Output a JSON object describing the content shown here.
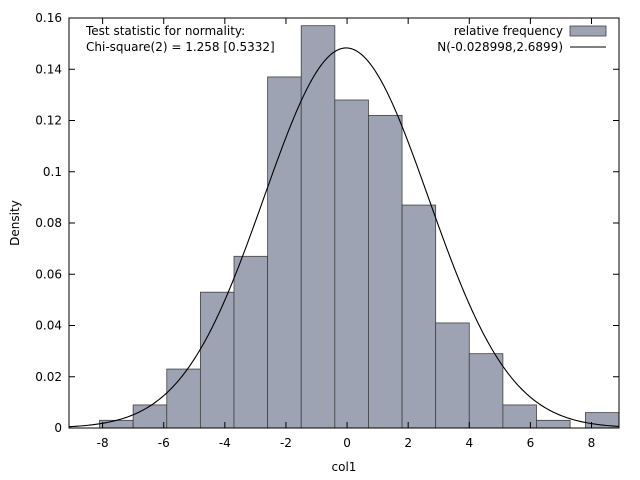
{
  "chart_data": {
    "type": "bar",
    "title": "",
    "xlabel": "col1",
    "ylabel": "Density",
    "xlim": [
      -9.1,
      8.9
    ],
    "ylim": [
      0,
      0.16
    ],
    "xticks": [
      -8,
      -6,
      -4,
      -2,
      0,
      2,
      4,
      6,
      8
    ],
    "yticks": [
      0,
      0.02,
      0.04,
      0.06,
      0.08,
      0.1,
      0.12,
      0.14,
      0.16
    ],
    "ytick_labels": [
      "0",
      "0.02",
      "0.04",
      "0.06",
      "0.08",
      "0.1",
      "0.12",
      "0.14",
      "0.16"
    ],
    "grid": false,
    "legend_position": "top-right",
    "annotation_lines": [
      "Test statistic for normality:",
      "Chi-square(2) = 1.258 [0.5332]"
    ],
    "series": [
      {
        "name": "relative frequency",
        "kind": "histogram",
        "color": "#9ea3b4",
        "edge_color": "#404040",
        "bins": [
          {
            "x0": -8.1,
            "x1": -7.0,
            "value": 0.003
          },
          {
            "x0": -7.0,
            "x1": -5.9,
            "value": 0.009
          },
          {
            "x0": -5.9,
            "x1": -4.8,
            "value": 0.023
          },
          {
            "x0": -4.8,
            "x1": -3.7,
            "value": 0.053
          },
          {
            "x0": -3.7,
            "x1": -2.6,
            "value": 0.067
          },
          {
            "x0": -2.6,
            "x1": -1.5,
            "value": 0.137
          },
          {
            "x0": -1.5,
            "x1": -0.4,
            "value": 0.157
          },
          {
            "x0": -0.4,
            "x1": 0.7,
            "value": 0.128
          },
          {
            "x0": 0.7,
            "x1": 1.8,
            "value": 0.122
          },
          {
            "x0": 1.8,
            "x1": 2.9,
            "value": 0.087
          },
          {
            "x0": 2.9,
            "x1": 4.0,
            "value": 0.041
          },
          {
            "x0": 4.0,
            "x1": 5.1,
            "value": 0.029
          },
          {
            "x0": 5.1,
            "x1": 6.2,
            "value": 0.009
          },
          {
            "x0": 6.2,
            "x1": 7.3,
            "value": 0.003
          },
          {
            "x0": 7.8,
            "x1": 8.9,
            "value": 0.006
          }
        ]
      },
      {
        "name": "N(-0.028998,2.6899)",
        "kind": "normal_curve",
        "color": "#000000",
        "mean": -0.028998,
        "sd": 2.6899
      }
    ]
  }
}
